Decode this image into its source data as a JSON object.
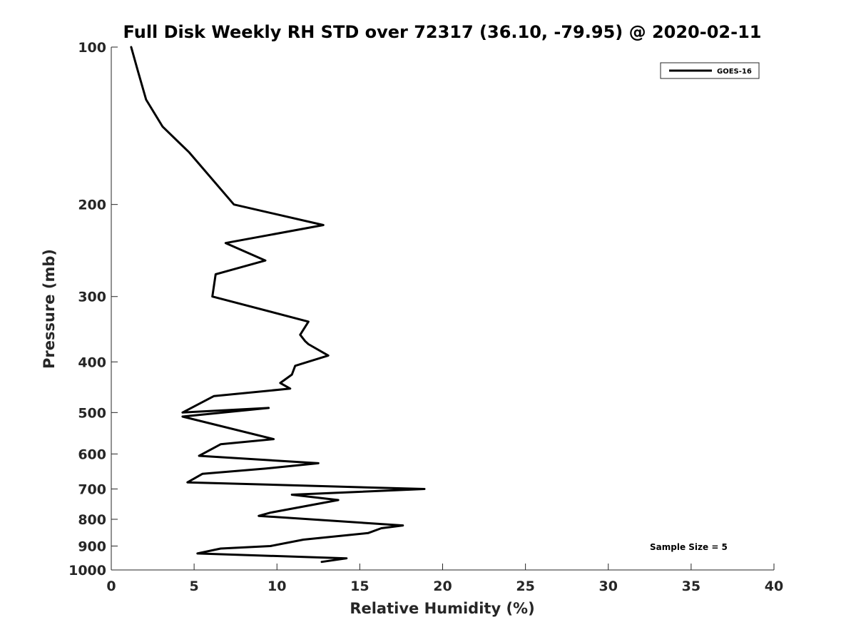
{
  "chart_data": {
    "type": "line",
    "title": "Full Disk Weekly RH STD over 72317 (36.10, -79.95) @ 2020-02-11",
    "xlabel": "Relative Humidity (%)",
    "ylabel": "Pressure (mb)",
    "xlim": [
      0,
      40
    ],
    "ylim": [
      100,
      1000
    ],
    "yscale": "log",
    "y_reversed": true,
    "grid": false,
    "x_ticks": [
      0,
      5,
      10,
      15,
      20,
      25,
      30,
      35,
      40
    ],
    "y_ticks": [
      100,
      200,
      300,
      400,
      500,
      600,
      700,
      800,
      900,
      1000
    ],
    "legend_position": "top-right",
    "annotation": "Sample Size = 5",
    "series": [
      {
        "name": "GOES-16",
        "color": "#000000",
        "x": [
          1.2,
          1.6,
          2.1,
          3.1,
          4.7,
          7.4,
          12.8,
          6.9,
          9.3,
          6.3,
          6.1,
          11.9,
          11.4,
          11.7,
          11.9,
          13.1,
          11.1,
          10.9,
          10.2,
          10.8,
          6.2,
          4.3,
          9.5,
          4.3,
          9.8,
          6.6,
          5.3,
          12.5,
          9.3,
          5.5,
          4.6,
          18.9,
          10.9,
          13.7,
          9.6,
          8.9,
          17.6,
          16.3,
          15.5,
          11.6,
          9.6,
          6.6,
          5.2,
          14.2,
          12.7
        ],
        "y": [
          100,
          111,
          126,
          142,
          159,
          200,
          219,
          237,
          256,
          272,
          300,
          335,
          355,
          365,
          370,
          389,
          407,
          423,
          439,
          450,
          465,
          500,
          490,
          509,
          562,
          575,
          605,
          625,
          640,
          655,
          680,
          700,
          718,
          735,
          777,
          788,
          822,
          832,
          850,
          875,
          900,
          910,
          930,
          950,
          965
        ]
      }
    ]
  }
}
